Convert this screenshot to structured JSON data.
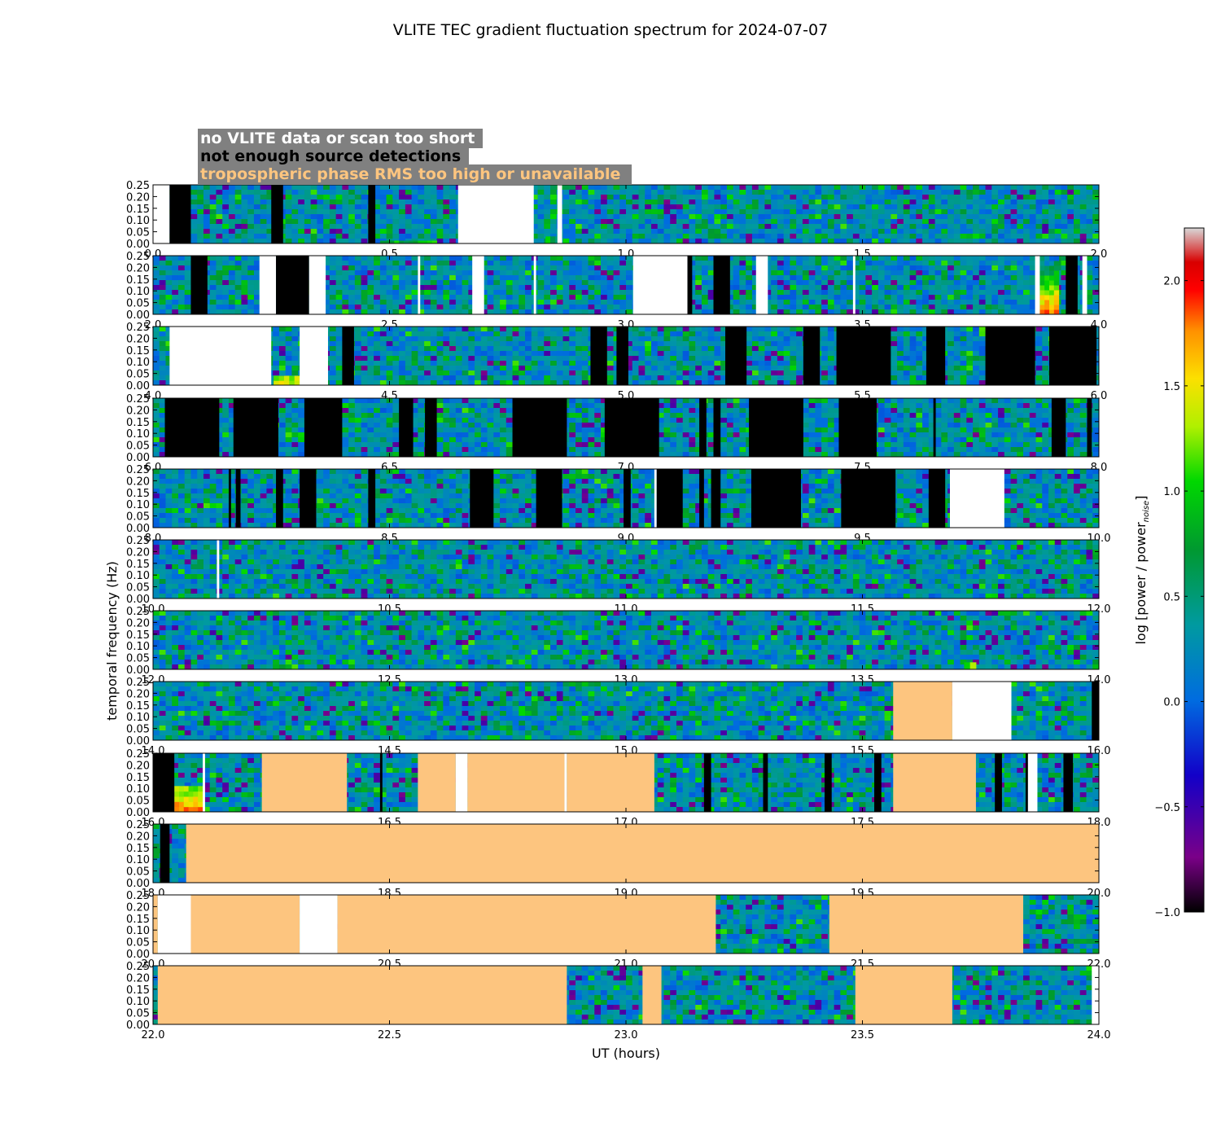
{
  "chart_data": {
    "type": "heatmap",
    "title": "VLITE TEC gradient fluctuation spectrum for 2024-07-07",
    "xlabel": "UT (hours)",
    "ylabel": "temporal frequency (Hz)",
    "colorbar_label_main": "log [power / power",
    "colorbar_label_sub": "noise",
    "colorbar_label_end": "]",
    "colorbar_range": [
      -1.0,
      2.25
    ],
    "colorbar_ticks": [
      "2.0",
      "1.5",
      "1.0",
      "0.5",
      "0.0",
      "−0.5",
      "−1.0"
    ],
    "colorbar_tick_values": [
      2.0,
      1.5,
      1.0,
      0.5,
      0.0,
      -0.5,
      -1.0
    ],
    "ylim": [
      0,
      0.25
    ],
    "y_ticks": [
      "0.25",
      "0.20",
      "0.15",
      "0.10",
      "0.05",
      "0.00"
    ],
    "legend": [
      {
        "text": "no VLITE data or scan too short",
        "color": "#ffffff"
      },
      {
        "text": "not enough source detections",
        "color": "#000000"
      },
      {
        "text": "tropospheric phase RMS too high or unavailable",
        "color": "#fdc57f"
      }
    ],
    "legend_bg": "#808080",
    "mask_colors": {
      "nodata": "#ffffff",
      "fewsrc": "#000000",
      "tropo": "#fdc57f"
    },
    "panels": [
      {
        "xlim": [
          0.0,
          2.0
        ],
        "x_ticks": [
          "0.0",
          "0.5",
          "1.0",
          "1.5",
          "2.0"
        ],
        "segments": [
          [
            0.0,
            0.035,
            "nodata"
          ],
          [
            0.035,
            0.08,
            "fewsrc"
          ],
          [
            0.25,
            0.275,
            "fewsrc"
          ],
          [
            0.455,
            0.47,
            "fewsrc"
          ],
          [
            0.645,
            0.805,
            "nodata"
          ],
          [
            0.855,
            0.865,
            "nodata"
          ]
        ],
        "hotspots": [
          [
            0.48,
            0.6,
            0.0,
            0.012,
            0.6
          ],
          [
            0.83,
            0.86,
            0.0,
            0.03,
            0.5
          ]
        ]
      },
      {
        "xlim": [
          2.0,
          4.0
        ],
        "x_ticks": [
          "2.0",
          "2.5",
          "3.0",
          "3.5",
          "4.0"
        ],
        "segments": [
          [
            2.08,
            2.115,
            "fewsrc"
          ],
          [
            2.225,
            2.26,
            "nodata"
          ],
          [
            2.26,
            2.33,
            "fewsrc"
          ],
          [
            2.33,
            2.365,
            "nodata"
          ],
          [
            2.56,
            2.565,
            "nodata"
          ],
          [
            2.675,
            2.7,
            "nodata"
          ],
          [
            2.805,
            2.81,
            "nodata"
          ],
          [
            3.015,
            3.13,
            "nodata"
          ],
          [
            3.13,
            3.14,
            "fewsrc"
          ],
          [
            3.185,
            3.22,
            "fewsrc"
          ],
          [
            3.275,
            3.3,
            "nodata"
          ],
          [
            3.48,
            3.485,
            "nodata"
          ],
          [
            3.865,
            3.875,
            "nodata"
          ],
          [
            3.93,
            3.955,
            "fewsrc"
          ],
          [
            3.965,
            3.975,
            "nodata"
          ]
        ],
        "hotspots": [
          [
            3.875,
            3.915,
            0.0,
            0.25,
            1.7
          ]
        ]
      },
      {
        "xlim": [
          4.0,
          6.0
        ],
        "x_ticks": [
          "4.0",
          "4.5",
          "5.0",
          "5.5",
          "6.0"
        ],
        "segments": [
          [
            4.035,
            4.25,
            "nodata"
          ],
          [
            4.31,
            4.37,
            "nodata"
          ],
          [
            4.4,
            4.425,
            "fewsrc"
          ],
          [
            4.925,
            4.96,
            "fewsrc"
          ],
          [
            4.98,
            5.005,
            "fewsrc"
          ],
          [
            5.21,
            5.255,
            "fewsrc"
          ],
          [
            5.375,
            5.41,
            "fewsrc"
          ],
          [
            5.445,
            5.56,
            "fewsrc"
          ],
          [
            5.635,
            5.675,
            "fewsrc"
          ],
          [
            5.76,
            5.865,
            "fewsrc"
          ],
          [
            5.895,
            5.995,
            "fewsrc"
          ]
        ],
        "hotspots": [
          [
            4.255,
            4.31,
            0.0,
            0.04,
            1.2
          ]
        ]
      },
      {
        "xlim": [
          6.0,
          8.0
        ],
        "x_ticks": [
          "6.0",
          "6.5",
          "7.0",
          "7.5",
          "8.0"
        ],
        "segments": [
          [
            6.025,
            6.14,
            "fewsrc"
          ],
          [
            6.17,
            6.265,
            "fewsrc"
          ],
          [
            6.32,
            6.4,
            "fewsrc"
          ],
          [
            6.52,
            6.55,
            "fewsrc"
          ],
          [
            6.575,
            6.6,
            "fewsrc"
          ],
          [
            6.76,
            6.875,
            "fewsrc"
          ],
          [
            6.955,
            7.07,
            "fewsrc"
          ],
          [
            7.155,
            7.17,
            "fewsrc"
          ],
          [
            7.185,
            7.2,
            "fewsrc"
          ],
          [
            7.26,
            7.375,
            "fewsrc"
          ],
          [
            7.45,
            7.53,
            "fewsrc"
          ],
          [
            7.65,
            7.655,
            "fewsrc"
          ],
          [
            7.9,
            7.93,
            "fewsrc"
          ],
          [
            7.975,
            7.985,
            "fewsrc"
          ]
        ],
        "hotspots": []
      },
      {
        "xlim": [
          8.0,
          10.0
        ],
        "x_ticks": [
          "8.0",
          "8.5",
          "9.0",
          "9.5",
          "10.0"
        ],
        "segments": [
          [
            8.16,
            8.165,
            "fewsrc"
          ],
          [
            8.175,
            8.185,
            "fewsrc"
          ],
          [
            8.26,
            8.275,
            "fewsrc"
          ],
          [
            8.31,
            8.345,
            "fewsrc"
          ],
          [
            8.455,
            8.47,
            "fewsrc"
          ],
          [
            8.67,
            8.72,
            "fewsrc"
          ],
          [
            8.81,
            8.865,
            "fewsrc"
          ],
          [
            8.995,
            9.01,
            "fewsrc"
          ],
          [
            9.06,
            9.065,
            "nodata"
          ],
          [
            9.065,
            9.12,
            "fewsrc"
          ],
          [
            9.155,
            9.165,
            "fewsrc"
          ],
          [
            9.18,
            9.2,
            "fewsrc"
          ],
          [
            9.265,
            9.37,
            "fewsrc"
          ],
          [
            9.455,
            9.57,
            "fewsrc"
          ],
          [
            9.64,
            9.675,
            "fewsrc"
          ],
          [
            9.685,
            9.8,
            "nodata"
          ]
        ],
        "hotspots": []
      },
      {
        "xlim": [
          10.0,
          12.0
        ],
        "x_ticks": [
          "10.0",
          "10.5",
          "11.0",
          "11.5",
          "12.0"
        ],
        "segments": [
          [
            10.135,
            10.14,
            "nodata"
          ]
        ],
        "hotspots": []
      },
      {
        "xlim": [
          12.0,
          14.0
        ],
        "x_ticks": [
          "12.0",
          "12.5",
          "13.0",
          "13.5",
          "14.0"
        ],
        "segments": [],
        "hotspots": [
          [
            13.715,
            13.74,
            0.0,
            0.03,
            0.9
          ]
        ]
      },
      {
        "xlim": [
          14.0,
          16.0
        ],
        "x_ticks": [
          "14.0",
          "14.5",
          "15.0",
          "15.5",
          "16.0"
        ],
        "segments": [
          [
            15.565,
            15.69,
            "tropo"
          ],
          [
            15.69,
            15.815,
            "nodata"
          ],
          [
            15.985,
            16.0,
            "fewsrc"
          ]
        ],
        "hotspots": []
      },
      {
        "xlim": [
          16.0,
          18.0
        ],
        "x_ticks": [
          "16.0",
          "16.5",
          "17.0",
          "17.5",
          "18.0"
        ],
        "segments": [
          [
            16.0,
            16.045,
            "fewsrc"
          ],
          [
            16.105,
            16.11,
            "nodata"
          ],
          [
            16.23,
            16.41,
            "tropo"
          ],
          [
            16.48,
            16.485,
            "fewsrc"
          ],
          [
            16.56,
            16.64,
            "tropo"
          ],
          [
            16.64,
            16.665,
            "nodata"
          ],
          [
            16.665,
            16.87,
            "tropo"
          ],
          [
            16.87,
            16.875,
            "nodata"
          ],
          [
            16.875,
            17.06,
            "tropo"
          ],
          [
            17.165,
            17.18,
            "fewsrc"
          ],
          [
            17.29,
            17.3,
            "fewsrc"
          ],
          [
            17.42,
            17.435,
            "fewsrc"
          ],
          [
            17.525,
            17.54,
            "fewsrc"
          ],
          [
            17.565,
            17.74,
            "tropo"
          ],
          [
            17.78,
            17.795,
            "fewsrc"
          ],
          [
            17.845,
            17.85,
            "fewsrc"
          ],
          [
            17.85,
            17.87,
            "nodata"
          ],
          [
            17.925,
            17.945,
            "fewsrc"
          ]
        ],
        "hotspots": [
          [
            16.045,
            16.105,
            0.0,
            0.11,
            1.6
          ]
        ]
      },
      {
        "xlim": [
          18.0,
          20.0
        ],
        "x_ticks": [
          "18.0",
          "18.5",
          "19.0",
          "19.5",
          "20.0"
        ],
        "segments": [
          [
            18.015,
            18.035,
            "fewsrc"
          ],
          [
            18.07,
            20.0,
            "tropo"
          ]
        ],
        "hotspots": []
      },
      {
        "xlim": [
          20.0,
          22.0
        ],
        "x_ticks": [
          "20.0",
          "20.5",
          "21.0",
          "21.5",
          "22.0"
        ],
        "segments": [
          [
            20.0,
            20.01,
            "tropo"
          ],
          [
            20.01,
            20.08,
            "nodata"
          ],
          [
            20.08,
            20.31,
            "tropo"
          ],
          [
            20.31,
            20.39,
            "nodata"
          ],
          [
            20.39,
            21.19,
            "tropo"
          ],
          [
            21.43,
            21.84,
            "tropo"
          ]
        ],
        "hotspots": []
      },
      {
        "xlim": [
          22.0,
          24.0
        ],
        "x_ticks": [
          "22.0",
          "22.5",
          "23.0",
          "23.5",
          "24.0"
        ],
        "segments": [
          [
            22.01,
            22.875,
            "tropo"
          ],
          [
            23.035,
            23.075,
            "tropo"
          ],
          [
            23.485,
            23.69,
            "tropo"
          ],
          [
            23.985,
            24.0,
            "nodata"
          ]
        ],
        "hotspots": []
      }
    ]
  }
}
